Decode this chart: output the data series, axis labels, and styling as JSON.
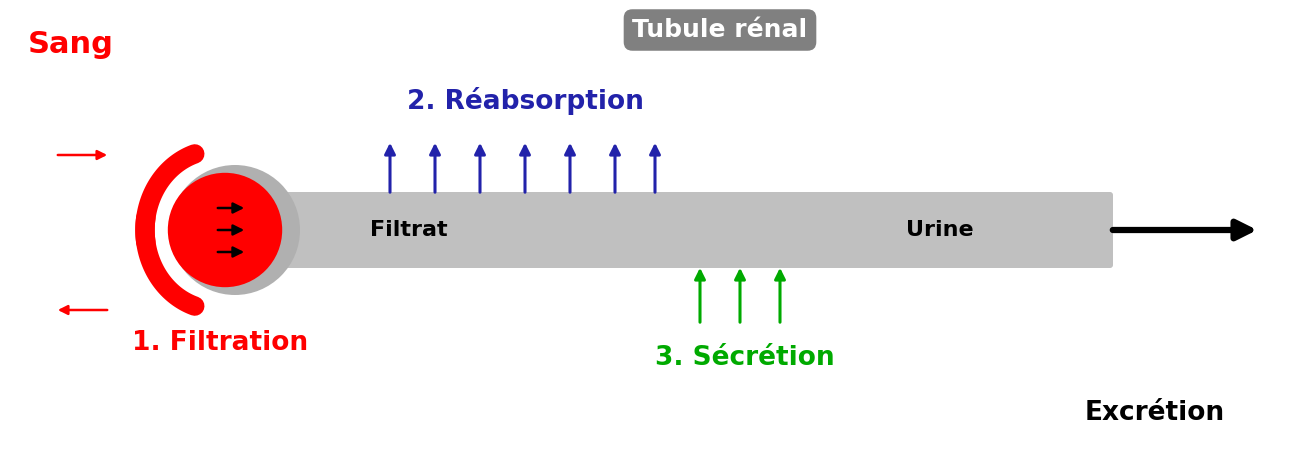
{
  "bg_color": "#ffffff",
  "tube_color": "#c0c0c0",
  "glom_color": "#b0b0b0",
  "blood_vessel_color": "#ff0000",
  "reabsorption_color": "#2222aa",
  "secretion_color": "#00aa00",
  "black": "#000000",
  "tubule_bg": "#808080",
  "tubule_text_color": "#ffffff",
  "sang_label": "Sang",
  "sang_color": "#ff0000",
  "filtration_label": "1. Filtration",
  "filtration_color": "#ff0000",
  "filtrat_label": "Filtrat",
  "reabsorption_label": "2. Réabsorption",
  "secretion_label": "3. Sécrétion",
  "urine_label": "Urine",
  "excretion_label": "Excrétion",
  "tubule_label": "Tubule rénal"
}
